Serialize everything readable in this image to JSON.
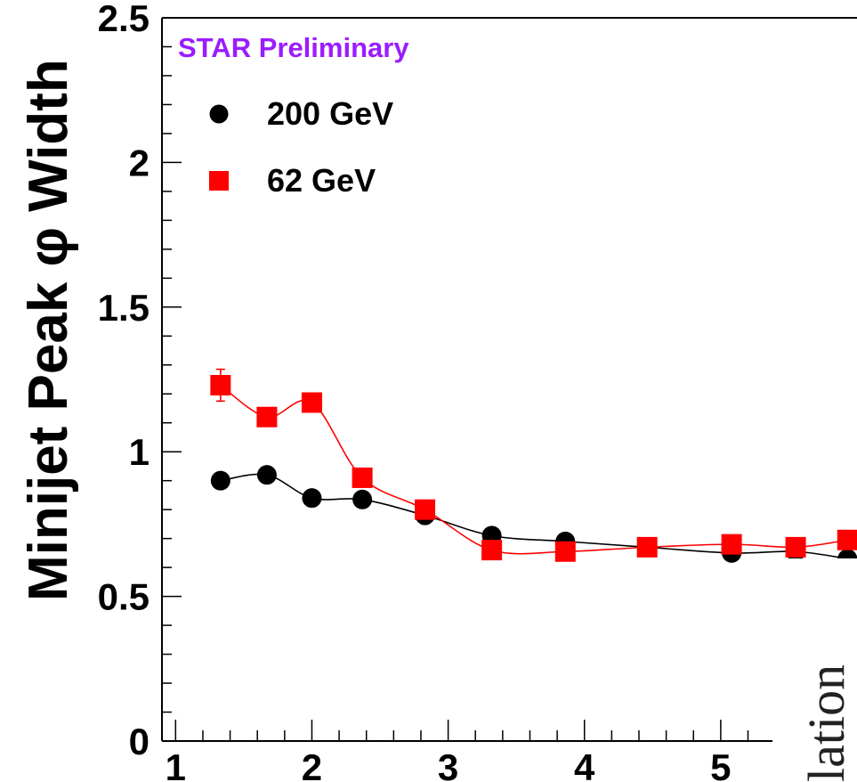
{
  "chart_data": {
    "type": "line",
    "title": "STAR Preliminary",
    "xlabel": "",
    "ylabel": "Minijet Peak φ Width",
    "xlim": [
      0.9,
      6.0
    ],
    "ylim": [
      0,
      2.5
    ],
    "x_ticks": [
      "1",
      "2",
      "3",
      "4",
      "5"
    ],
    "y_ticks": [
      "0",
      "0.5",
      "1",
      "1.5",
      "2",
      "2.5"
    ],
    "legend_position": "top-left",
    "side_text": "lation",
    "series": [
      {
        "name": "200 GeV",
        "marker": "circle",
        "color": "#000000",
        "x": [
          1.33,
          1.67,
          2.0,
          2.37,
          2.83,
          3.32,
          3.86,
          4.46,
          5.08,
          5.55,
          5.93
        ],
        "y": [
          0.9,
          0.92,
          0.84,
          0.835,
          0.78,
          0.71,
          0.69,
          0.67,
          0.65,
          0.655,
          0.63
        ]
      },
      {
        "name": "62 GeV",
        "marker": "square",
        "color": "#ff0000",
        "x": [
          1.33,
          1.67,
          2.0,
          2.37,
          2.83,
          3.32,
          3.86,
          4.46,
          5.08,
          5.55,
          5.93
        ],
        "y": [
          1.23,
          1.12,
          1.17,
          0.91,
          0.8,
          0.66,
          0.655,
          0.67,
          0.68,
          0.67,
          0.695
        ],
        "error_bars": [
          0.055,
          0,
          0,
          0,
          0,
          0,
          0,
          0,
          0,
          0,
          0
        ]
      }
    ]
  }
}
